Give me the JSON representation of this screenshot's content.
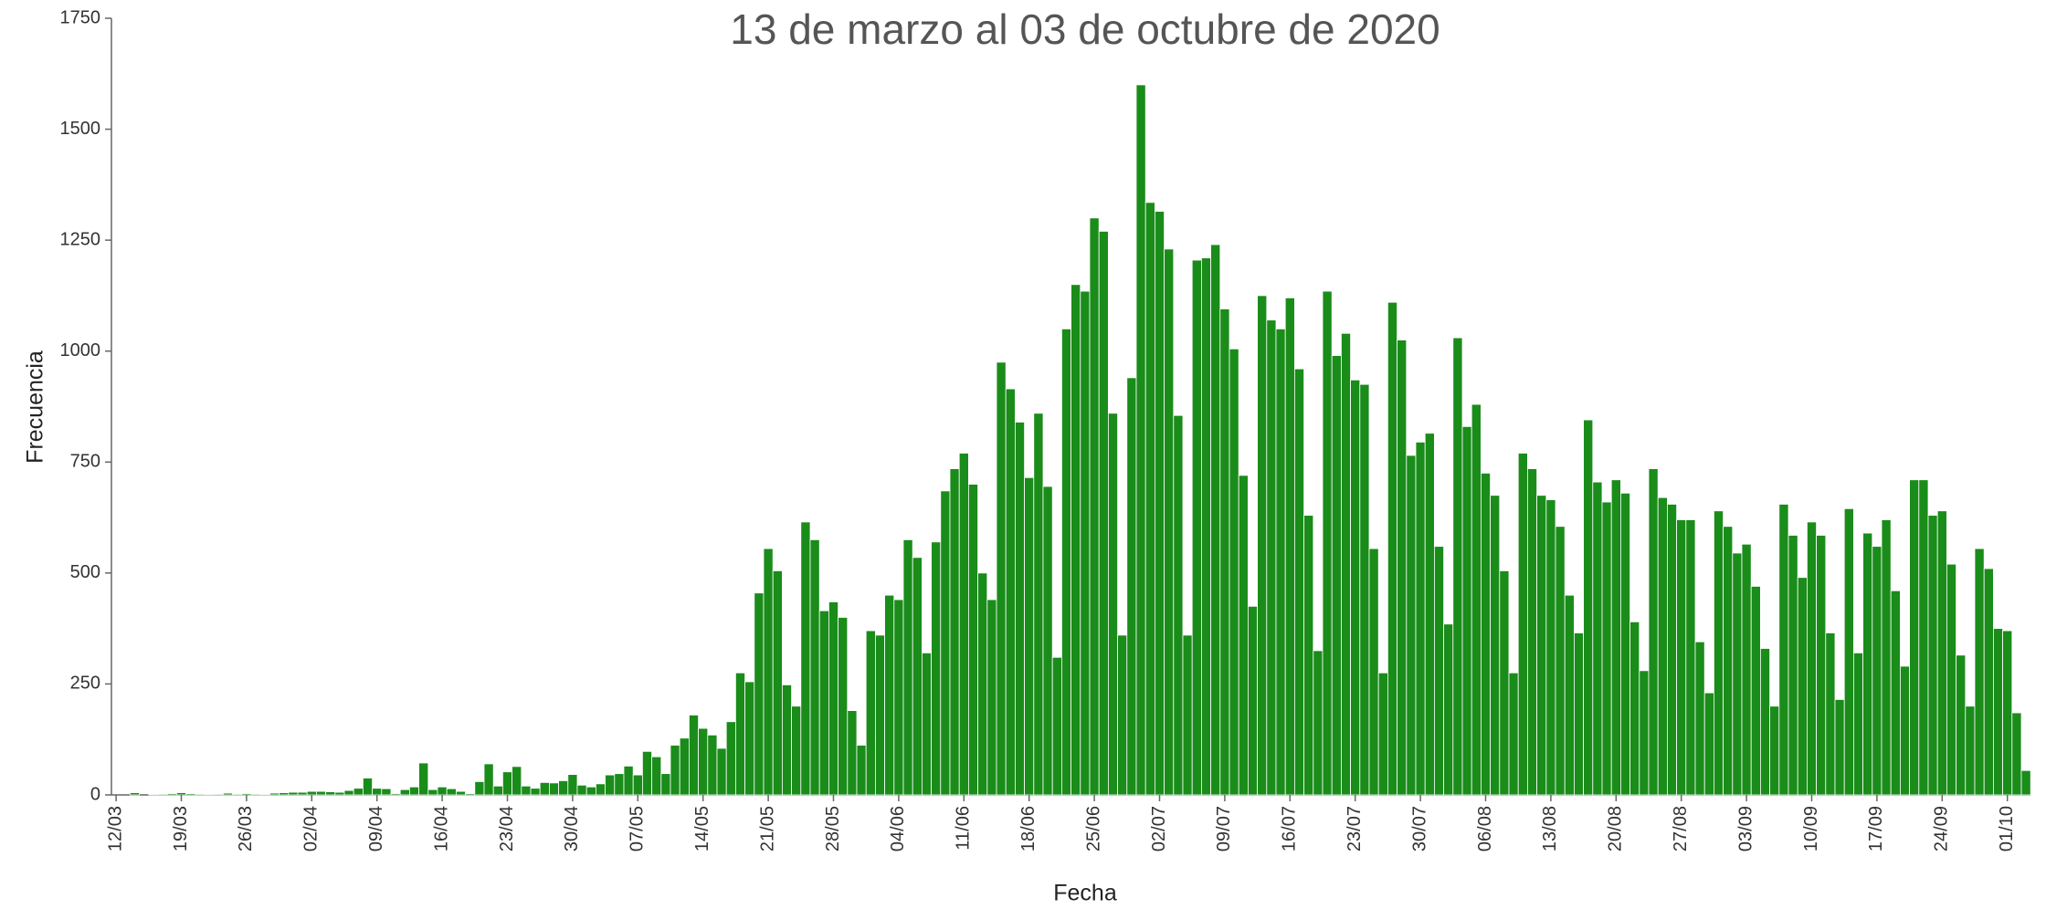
{
  "chart_data": {
    "type": "bar",
    "title": "13 de marzo al 03 de octubre de 2020",
    "x_label": "Fecha",
    "y_label": "Frecuencia",
    "color": "#1a8c1a",
    "ylim": [
      0,
      1750
    ],
    "yticks": [
      0,
      250,
      500,
      750,
      1000,
      1250,
      1500,
      1750
    ],
    "categories": [
      "12/03",
      null,
      null,
      null,
      null,
      null,
      null,
      "19/03",
      null,
      null,
      null,
      null,
      null,
      null,
      "26/03",
      null,
      null,
      null,
      null,
      null,
      null,
      "02/04",
      null,
      null,
      null,
      null,
      null,
      null,
      "09/04",
      null,
      null,
      null,
      null,
      null,
      null,
      "16/04",
      null,
      null,
      null,
      null,
      null,
      null,
      "23/04",
      null,
      null,
      null,
      null,
      null,
      null,
      "30/04",
      null,
      null,
      null,
      null,
      null,
      null,
      "07/05",
      null,
      null,
      null,
      null,
      null,
      null,
      "14/05",
      null,
      null,
      null,
      null,
      null,
      null,
      "21/05",
      null,
      null,
      null,
      null,
      null,
      null,
      "28/05",
      null,
      null,
      null,
      null,
      null,
      null,
      "04/06",
      null,
      null,
      null,
      null,
      null,
      null,
      "11/06",
      null,
      null,
      null,
      null,
      null,
      null,
      "18/06",
      null,
      null,
      null,
      null,
      null,
      null,
      "25/06",
      null,
      null,
      null,
      null,
      null,
      null,
      "02/07",
      null,
      null,
      null,
      null,
      null,
      null,
      "09/07",
      null,
      null,
      null,
      null,
      null,
      null,
      "16/07",
      null,
      null,
      null,
      null,
      null,
      null,
      "23/07",
      null,
      null,
      null,
      null,
      null,
      null,
      "30/07",
      null,
      null,
      null,
      null,
      null,
      null,
      "06/08",
      null,
      null,
      null,
      null,
      null,
      null,
      "13/08",
      null,
      null,
      null,
      null,
      null,
      null,
      "20/08",
      null,
      null,
      null,
      null,
      null,
      null,
      "27/08",
      null,
      null,
      null,
      null,
      null,
      null,
      "03/09",
      null,
      null,
      null,
      null,
      null,
      null,
      "10/09",
      null,
      null,
      null,
      null,
      null,
      null,
      "17/09",
      null,
      null,
      null,
      null,
      null,
      null,
      "24/09",
      null,
      null,
      null,
      null,
      null,
      null,
      "01/10",
      null,
      null
    ],
    "values": [
      0,
      0,
      5,
      0,
      1,
      2,
      3,
      5,
      3,
      2,
      1,
      2,
      4,
      2,
      3,
      2,
      1,
      4,
      5,
      6,
      6,
      8,
      8,
      7,
      6,
      10,
      15,
      38,
      15,
      14,
      3,
      12,
      18,
      72,
      12,
      18,
      14,
      8,
      3,
      30,
      70,
      20,
      52,
      64,
      20,
      15,
      28,
      27,
      32,
      46,
      22,
      18,
      25,
      45,
      48,
      65,
      45,
      98,
      86,
      48,
      112,
      128,
      180,
      150,
      135,
      105,
      165,
      275,
      255,
      455,
      555,
      505,
      248,
      200,
      615,
      575,
      415,
      435,
      400,
      190,
      112,
      370,
      360,
      450,
      440,
      575,
      535,
      320,
      570,
      685,
      735,
      770,
      700,
      500,
      440,
      975,
      915,
      840,
      715,
      860,
      695,
      310,
      1050,
      1150,
      1135,
      1300,
      1270,
      860,
      360,
      940,
      1600,
      1335,
      1315,
      1230,
      855,
      360,
      1205,
      1210,
      1240,
      1095,
      1005,
      720,
      425,
      1125,
      1070,
      1050,
      1120,
      960,
      630,
      325,
      1135,
      990,
      1040,
      935,
      925,
      555,
      275,
      1110,
      1025,
      765,
      795,
      815,
      560,
      385,
      1030,
      830,
      880,
      725,
      675,
      505,
      275,
      770,
      735,
      675,
      665,
      605,
      450,
      365,
      845,
      705,
      660,
      710,
      680,
      390,
      280,
      735,
      670,
      655,
      620,
      620,
      345,
      230,
      640,
      605,
      545,
      565,
      470,
      330,
      200,
      655,
      585,
      490,
      615,
      585,
      365,
      215,
      645,
      320,
      590,
      560,
      620,
      460,
      290,
      710,
      710,
      630,
      640,
      520,
      315,
      200,
      555,
      510,
      375,
      370,
      185,
      55
    ]
  }
}
